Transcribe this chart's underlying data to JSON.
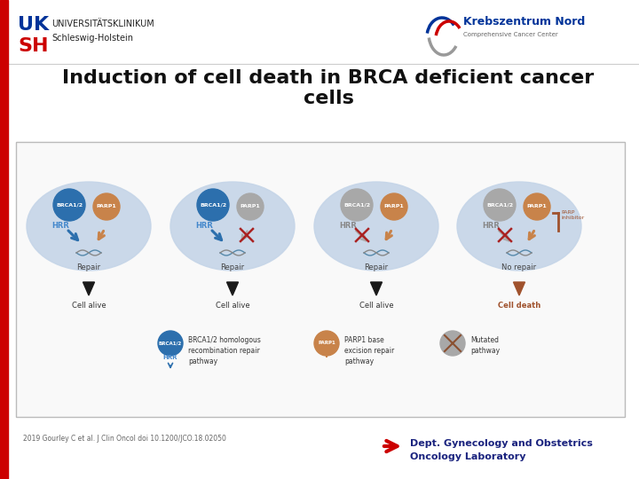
{
  "title_line1": "Induction of cell death in BRCA deficient cancer",
  "title_line2": "cells",
  "title_fontsize": 16,
  "title_fontweight": "bold",
  "header_text1": "UNIVERSITÄTSKLINIKUM",
  "header_text2": "Schleswig-Holstein",
  "footer_citation": "2019 Gourley C et al. J Clin Oncol doi 10.1200/JCO.18.02050",
  "footer_dept1": "Dept. Gynecology and Obstetrics",
  "footer_dept2": "Oncology Laboratory",
  "bg_color": "#ffffff",
  "red_bar_color": "#cc0000",
  "cell_fill": "#c5d5e8",
  "brca_blue": "#2c6fad",
  "parp_orange": "#c8834a",
  "parp_gray": "#a8a8a8",
  "arrow_blue": "#2c6fad",
  "arrow_orange": "#c8834a",
  "arrow_black": "#1a1a1a",
  "arrow_brown": "#a0522d",
  "hrr_blue": "#4488cc",
  "hrr_gray": "#888888",
  "cross_red": "#aa2222",
  "cross_brown": "#8B5030",
  "uk_blue": "#003399",
  "uk_red": "#cc0000",
  "dept_blue": "#1a237e",
  "footer_arrow_red": "#cc0000",
  "kreb_gray": "#999999",
  "kreb_blue": "#003399",
  "kreb_red": "#cc0000",
  "box_border": "#bbbbbb",
  "box_bg": "#f9f9f9",
  "repair_label_color": "#444444",
  "cell_alive_color": "#333333",
  "cell_death_color": "#a0522d"
}
